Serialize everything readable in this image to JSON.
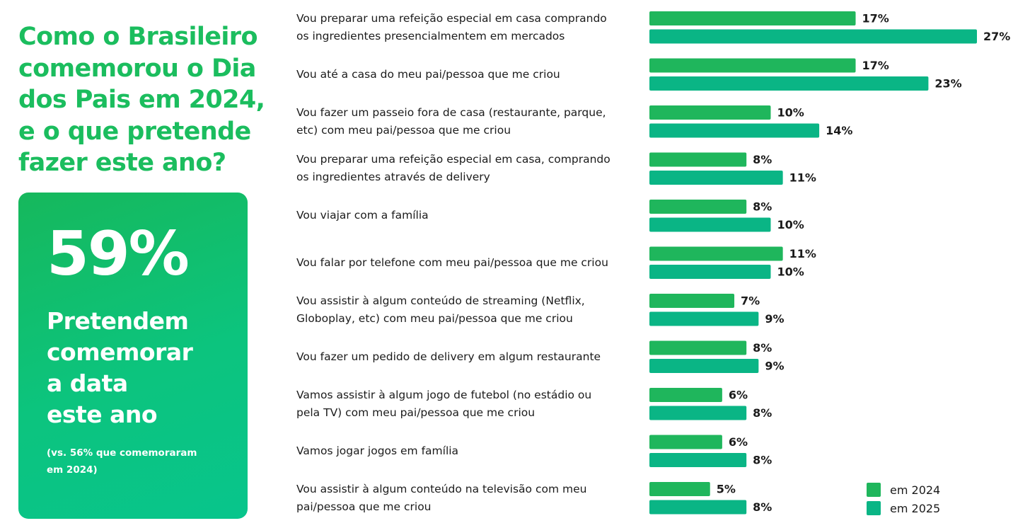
{
  "headline": {
    "lines": [
      "Como o Brasileiro",
      "comemorou o Dia",
      "dos Pais em 2024,",
      "e o que pretende",
      "fazer este ano?"
    ]
  },
  "card": {
    "big_value": "59%",
    "text_lines": [
      "Pretendem",
      "comemorar",
      "a data",
      "este ano"
    ],
    "note_lines": [
      "(vs. 56% que comemoraram",
      "em 2024)"
    ],
    "gradient_start": "#16b85c",
    "gradient_end": "#08c58c"
  },
  "chart_data": {
    "type": "bar",
    "orientation": "horizontal",
    "categories": [
      [
        "Vou preparar uma refeição especial em casa comprando",
        "os ingredientes presencialmentem em mercados"
      ],
      [
        "Vou até a casa do meu pai/pessoa que me criou"
      ],
      [
        "Vou fazer um passeio fora de casa (restaurante, parque,",
        "etc) com meu pai/pessoa que me criou"
      ],
      [
        "Vou preparar uma refeição especial em casa, comprando",
        "os ingredientes através de delivery"
      ],
      [
        "Vou viajar com a família"
      ],
      [
        "Vou falar por telefone com meu pai/pessoa que me criou"
      ],
      [
        "Vou assistir à algum conteúdo de streaming (Netflix,",
        "Globoplay, etc) com meu pai/pessoa que me criou"
      ],
      [
        "Vou fazer um pedido de delivery em algum restaurante"
      ],
      [
        "Vamos assistir à algum jogo de futebol (no estádio ou",
        "pela TV) com meu pai/pessoa que me criou"
      ],
      [
        "Vamos jogar jogos em família"
      ],
      [
        "Vou assistir à algum conteúdo na televisão com meu",
        "pai/pessoa que me criou"
      ]
    ],
    "series": [
      {
        "name": "em 2024",
        "color": "#1fb65c",
        "values": [
          17,
          17,
          10,
          8,
          8,
          11,
          7,
          8,
          6,
          6,
          5
        ]
      },
      {
        "name": "em 2025",
        "color": "#0ab585",
        "values": [
          27,
          23,
          14,
          11,
          10,
          10,
          9,
          9,
          8,
          8,
          8
        ]
      }
    ],
    "value_suffix": "%",
    "xlim": [
      0,
      27
    ],
    "grid": false,
    "legend_position": "bottom-right"
  }
}
